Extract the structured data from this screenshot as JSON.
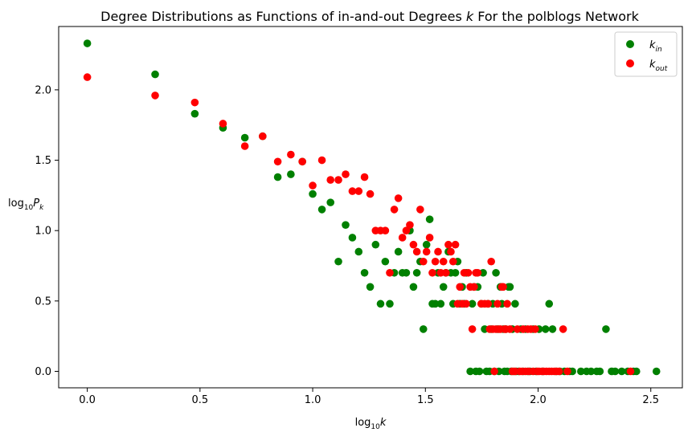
{
  "chart_data": {
    "type": "scatter",
    "title": "Degree Distributions as Functions of in-and-out Degrees k For the polblogs Network",
    "title_parts": {
      "before": "Degree Distributions as Functions of in-and-out Degrees ",
      "var": "k",
      "after": " For the polblogs Network"
    },
    "xlabel": "log10k",
    "xlabel_parts": {
      "base": "log",
      "sub": "10",
      "var": "k"
    },
    "ylabel": "log10Pk",
    "ylabel_parts": {
      "base": "log",
      "sub": "10",
      "var": "P",
      "var_sub": "k"
    },
    "xlim": [
      -0.127,
      2.64
    ],
    "ylim": [
      -0.117,
      2.45
    ],
    "x_ticks": [
      0.0,
      0.5,
      1.0,
      1.5,
      2.0,
      2.5
    ],
    "x_tick_labels": [
      "0.0",
      "0.5",
      "1.0",
      "1.5",
      "2.0",
      "2.5"
    ],
    "y_ticks": [
      0.0,
      0.5,
      1.0,
      1.5,
      2.0
    ],
    "y_tick_labels": [
      "0.0",
      "0.5",
      "1.0",
      "1.5",
      "2.0"
    ],
    "grid": false,
    "legend_position": "top-right",
    "series": [
      {
        "name": "k_in",
        "label_main": "k",
        "label_sub": "in",
        "color": "#008000",
        "points": [
          [
            0.0,
            2.33
          ],
          [
            0.301,
            2.11
          ],
          [
            0.477,
            1.83
          ],
          [
            0.602,
            1.73
          ],
          [
            0.699,
            1.66
          ],
          [
            0.778,
            1.67
          ],
          [
            0.845,
            1.38
          ],
          [
            0.903,
            1.4
          ],
          [
            0.954,
            1.49
          ],
          [
            1.0,
            1.26
          ],
          [
            1.041,
            1.15
          ],
          [
            1.079,
            1.2
          ],
          [
            1.114,
            0.78
          ],
          [
            1.146,
            1.04
          ],
          [
            1.176,
            0.95
          ],
          [
            1.204,
            0.85
          ],
          [
            1.23,
            0.7
          ],
          [
            1.255,
            0.6
          ],
          [
            1.279,
            0.9
          ],
          [
            1.301,
            0.48
          ],
          [
            1.322,
            0.78
          ],
          [
            1.342,
            0.48
          ],
          [
            1.362,
            0.7
          ],
          [
            1.38,
            0.85
          ],
          [
            1.398,
            0.7
          ],
          [
            1.415,
            0.7
          ],
          [
            1.431,
            1.0
          ],
          [
            1.447,
            0.6
          ],
          [
            1.462,
            0.7
          ],
          [
            1.477,
            0.78
          ],
          [
            1.491,
            0.3
          ],
          [
            1.505,
            0.9
          ],
          [
            1.519,
            1.08
          ],
          [
            1.531,
            0.48
          ],
          [
            1.544,
            0.48
          ],
          [
            1.556,
            0.7
          ],
          [
            1.568,
            0.48
          ],
          [
            1.58,
            0.6
          ],
          [
            1.591,
            0.7
          ],
          [
            1.602,
            0.85
          ],
          [
            1.613,
            0.7
          ],
          [
            1.623,
            0.48
          ],
          [
            1.633,
            0.7
          ],
          [
            1.643,
            0.78
          ],
          [
            1.653,
            0.48
          ],
          [
            1.663,
            0.6
          ],
          [
            1.672,
            0.48
          ],
          [
            1.681,
            0.7
          ],
          [
            1.699,
            0.0
          ],
          [
            1.708,
            0.48
          ],
          [
            1.716,
            0.6
          ],
          [
            1.724,
            0.0
          ],
          [
            1.732,
            0.6
          ],
          [
            1.74,
            0.0
          ],
          [
            1.748,
            0.48
          ],
          [
            1.756,
            0.7
          ],
          [
            1.763,
            0.3
          ],
          [
            1.771,
            0.0
          ],
          [
            1.778,
            0.48
          ],
          [
            1.785,
            0.0
          ],
          [
            1.792,
            0.3
          ],
          [
            1.799,
            0.48
          ],
          [
            1.806,
            0.0
          ],
          [
            1.813,
            0.7
          ],
          [
            1.82,
            0.3
          ],
          [
            1.826,
            0.0
          ],
          [
            1.833,
            0.6
          ],
          [
            1.839,
            0.48
          ],
          [
            1.845,
            0.3
          ],
          [
            1.851,
            0.0
          ],
          [
            1.857,
            0.3
          ],
          [
            1.863,
            0.0
          ],
          [
            1.869,
            0.6
          ],
          [
            1.875,
            0.6
          ],
          [
            1.881,
            0.0
          ],
          [
            1.886,
            0.3
          ],
          [
            1.892,
            0.0
          ],
          [
            1.898,
            0.48
          ],
          [
            1.903,
            0.0
          ],
          [
            1.914,
            0.0
          ],
          [
            1.924,
            0.3
          ],
          [
            1.934,
            0.0
          ],
          [
            1.944,
            0.3
          ],
          [
            1.954,
            0.0
          ],
          [
            1.964,
            0.0
          ],
          [
            1.978,
            0.3
          ],
          [
            1.991,
            0.0
          ],
          [
            2.004,
            0.3
          ],
          [
            2.021,
            0.0
          ],
          [
            2.033,
            0.3
          ],
          [
            2.049,
            0.48
          ],
          [
            2.064,
            0.3
          ],
          [
            2.079,
            0.0
          ],
          [
            2.097,
            0.0
          ],
          [
            2.117,
            0.0
          ],
          [
            2.14,
            0.0
          ],
          [
            2.152,
            0.0
          ],
          [
            2.19,
            0.0
          ],
          [
            2.215,
            0.0
          ],
          [
            2.235,
            0.0
          ],
          [
            2.26,
            0.0
          ],
          [
            2.274,
            0.0
          ],
          [
            2.301,
            0.3
          ],
          [
            2.326,
            0.0
          ],
          [
            2.342,
            0.0
          ],
          [
            2.371,
            0.0
          ],
          [
            2.398,
            0.0
          ],
          [
            2.423,
            0.0
          ],
          [
            2.436,
            0.0
          ],
          [
            2.525,
            0.0
          ]
        ]
      },
      {
        "name": "k_out",
        "label_main": "k",
        "label_sub": "out",
        "color": "#ff0000",
        "points": [
          [
            0.0,
            2.09
          ],
          [
            0.301,
            1.96
          ],
          [
            0.477,
            1.91
          ],
          [
            0.602,
            1.76
          ],
          [
            0.699,
            1.6
          ],
          [
            0.778,
            1.67
          ],
          [
            0.845,
            1.49
          ],
          [
            0.903,
            1.54
          ],
          [
            0.954,
            1.49
          ],
          [
            1.0,
            1.32
          ],
          [
            1.041,
            1.5
          ],
          [
            1.079,
            1.36
          ],
          [
            1.114,
            1.36
          ],
          [
            1.146,
            1.4
          ],
          [
            1.176,
            1.28
          ],
          [
            1.204,
            1.28
          ],
          [
            1.23,
            1.38
          ],
          [
            1.255,
            1.26
          ],
          [
            1.279,
            1.0
          ],
          [
            1.301,
            1.0
          ],
          [
            1.322,
            1.0
          ],
          [
            1.342,
            0.7
          ],
          [
            1.362,
            1.15
          ],
          [
            1.38,
            1.23
          ],
          [
            1.398,
            0.95
          ],
          [
            1.415,
            1.0
          ],
          [
            1.431,
            1.04
          ],
          [
            1.447,
            0.9
          ],
          [
            1.462,
            0.85
          ],
          [
            1.477,
            1.15
          ],
          [
            1.491,
            0.78
          ],
          [
            1.505,
            0.85
          ],
          [
            1.519,
            0.95
          ],
          [
            1.531,
            0.7
          ],
          [
            1.544,
            0.78
          ],
          [
            1.556,
            0.85
          ],
          [
            1.568,
            0.7
          ],
          [
            1.58,
            0.78
          ],
          [
            1.591,
            0.7
          ],
          [
            1.602,
            0.9
          ],
          [
            1.613,
            0.85
          ],
          [
            1.623,
            0.78
          ],
          [
            1.633,
            0.9
          ],
          [
            1.643,
            0.48
          ],
          [
            1.653,
            0.6
          ],
          [
            1.663,
            0.48
          ],
          [
            1.672,
            0.7
          ],
          [
            1.681,
            0.48
          ],
          [
            1.69,
            0.7
          ],
          [
            1.699,
            0.6
          ],
          [
            1.708,
            0.3
          ],
          [
            1.716,
            0.6
          ],
          [
            1.724,
            0.7
          ],
          [
            1.732,
            0.7
          ],
          [
            1.748,
            0.48
          ],
          [
            1.763,
            0.48
          ],
          [
            1.778,
            0.48
          ],
          [
            1.785,
            0.3
          ],
          [
            1.792,
            0.78
          ],
          [
            1.799,
            0.3
          ],
          [
            1.806,
            0.0
          ],
          [
            1.813,
            0.3
          ],
          [
            1.82,
            0.48
          ],
          [
            1.826,
            0.3
          ],
          [
            1.833,
            0.3
          ],
          [
            1.839,
            0.6
          ],
          [
            1.845,
            0.6
          ],
          [
            1.851,
            0.3
          ],
          [
            1.857,
            0.3
          ],
          [
            1.863,
            0.48
          ],
          [
            1.875,
            0.3
          ],
          [
            1.886,
            0.0
          ],
          [
            1.898,
            0.0
          ],
          [
            1.908,
            0.3
          ],
          [
            1.919,
            0.0
          ],
          [
            1.929,
            0.0
          ],
          [
            1.934,
            0.3
          ],
          [
            1.944,
            0.0
          ],
          [
            1.954,
            0.3
          ],
          [
            1.959,
            0.0
          ],
          [
            1.968,
            0.3
          ],
          [
            1.978,
            0.0
          ],
          [
            1.987,
            0.3
          ],
          [
            1.996,
            0.0
          ],
          [
            2.004,
            0.0
          ],
          [
            2.017,
            0.0
          ],
          [
            2.025,
            0.0
          ],
          [
            2.037,
            0.0
          ],
          [
            2.049,
            0.0
          ],
          [
            2.06,
            0.0
          ],
          [
            2.072,
            0.0
          ],
          [
            2.083,
            0.0
          ],
          [
            2.093,
            0.0
          ],
          [
            2.111,
            0.3
          ],
          [
            2.13,
            0.0
          ],
          [
            2.41,
            0.0
          ]
        ]
      }
    ]
  }
}
